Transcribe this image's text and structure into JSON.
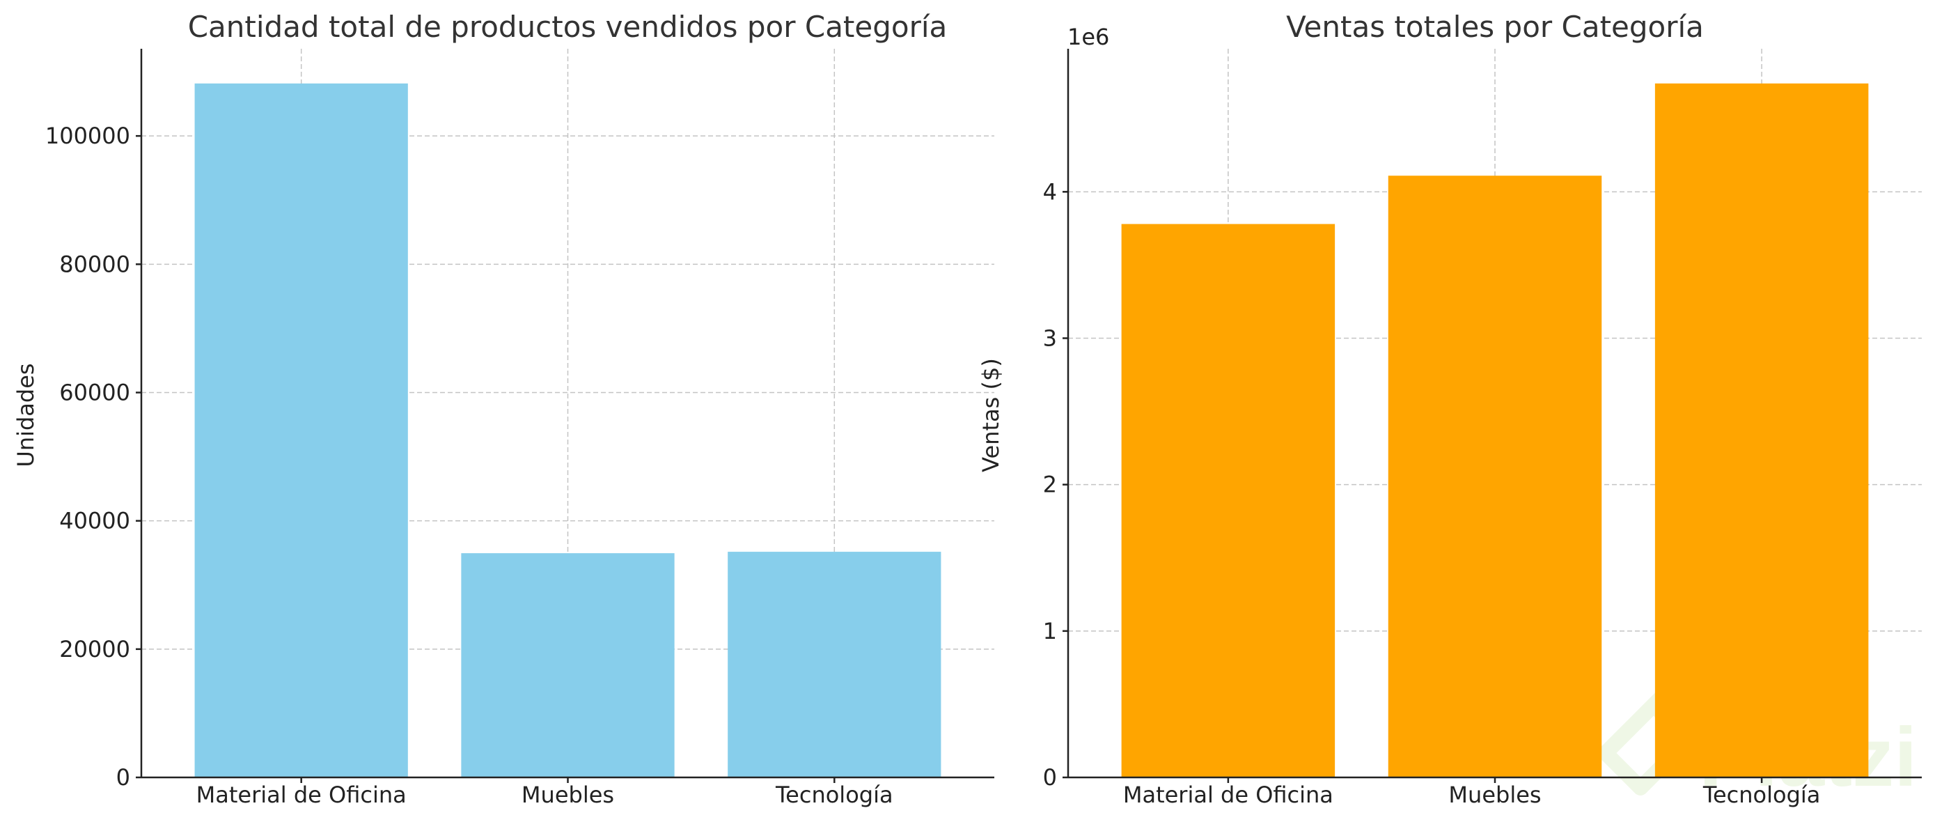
{
  "colors": {
    "bar_units": "#87CEEB",
    "bar_sales": "#FFA500",
    "watermark": "#8bc34a"
  },
  "watermark": {
    "text": "Platzi",
    "icon": "platzi-logo-icon"
  },
  "chart_data": [
    {
      "type": "bar",
      "title": "Cantidad total de productos vendidos por Categoría",
      "xlabel": "",
      "ylabel": "Unidades",
      "categories": [
        "Material de Oficina",
        "Muebles",
        "Tecnología"
      ],
      "values": [
        108182,
        34954,
        35176
      ],
      "ylim": [
        0,
        113591
      ],
      "yticks": [
        0,
        20000,
        40000,
        60000,
        80000,
        100000
      ],
      "ytick_labels": [
        "0",
        "20000",
        "40000",
        "60000",
        "80000",
        "100000"
      ],
      "offset_label": "",
      "grid": true,
      "legend": "none"
    },
    {
      "type": "bar",
      "title": "Ventas totales por Categoría",
      "xlabel": "",
      "ylabel": "Ventas ($)",
      "categories": [
        "Material de Oficina",
        "Muebles",
        "Tecnología"
      ],
      "values": [
        3780000,
        4110000,
        4740000
      ],
      "ylim": [
        0,
        4977000
      ],
      "yticks": [
        0,
        1000000,
        2000000,
        3000000,
        4000000
      ],
      "ytick_labels": [
        "0",
        "1",
        "2",
        "3",
        "4"
      ],
      "offset_label": "1e6",
      "grid": true,
      "legend": "none"
    }
  ]
}
